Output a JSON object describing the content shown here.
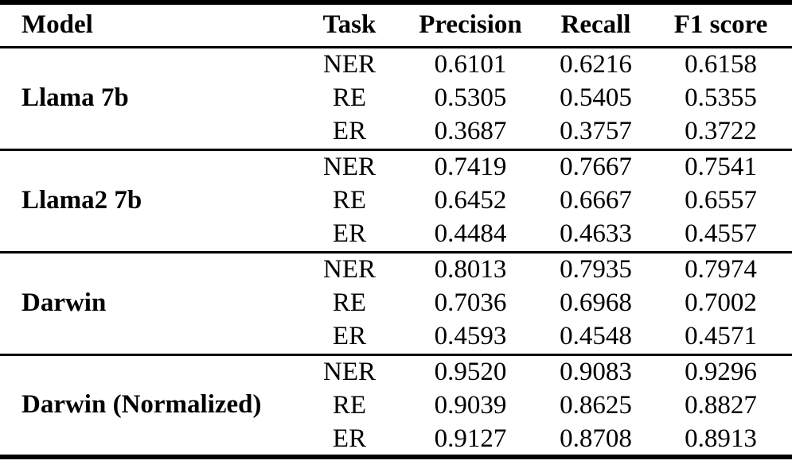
{
  "table": {
    "columns": [
      "Model",
      "Task",
      "Precision",
      "Recall",
      "F1 score"
    ],
    "groups": [
      {
        "model": "Llama 7b",
        "rows": [
          {
            "task": "NER",
            "precision": "0.6101",
            "recall": "0.6216",
            "f1": "0.6158"
          },
          {
            "task": "RE",
            "precision": "0.5305",
            "recall": "0.5405",
            "f1": "0.5355"
          },
          {
            "task": "ER",
            "precision": "0.3687",
            "recall": "0.3757",
            "f1": "0.3722"
          }
        ]
      },
      {
        "model": "Llama2 7b",
        "rows": [
          {
            "task": "NER",
            "precision": "0.7419",
            "recall": "0.7667",
            "f1": "0.7541"
          },
          {
            "task": "RE",
            "precision": "0.6452",
            "recall": "0.6667",
            "f1": "0.6557"
          },
          {
            "task": "ER",
            "precision": "0.4484",
            "recall": "0.4633",
            "f1": "0.4557"
          }
        ]
      },
      {
        "model": "Darwin",
        "rows": [
          {
            "task": "NER",
            "precision": "0.8013",
            "recall": "0.7935",
            "f1": "0.7974"
          },
          {
            "task": "RE",
            "precision": "0.7036",
            "recall": "0.6968",
            "f1": "0.7002"
          },
          {
            "task": "ER",
            "precision": "0.4593",
            "recall": "0.4548",
            "f1": "0.4571"
          }
        ]
      },
      {
        "model": "Darwin (Normalized)",
        "rows": [
          {
            "task": "NER",
            "precision": "0.9520",
            "recall": "0.9083",
            "f1": "0.9296"
          },
          {
            "task": "RE",
            "precision": "0.9039",
            "recall": "0.8625",
            "f1": "0.8827"
          },
          {
            "task": "ER",
            "precision": "0.9127",
            "recall": "0.8708",
            "f1": "0.8913"
          }
        ]
      }
    ]
  },
  "colors": {
    "rule": "#000000",
    "text": "#000000",
    "background": "#ffffff"
  }
}
